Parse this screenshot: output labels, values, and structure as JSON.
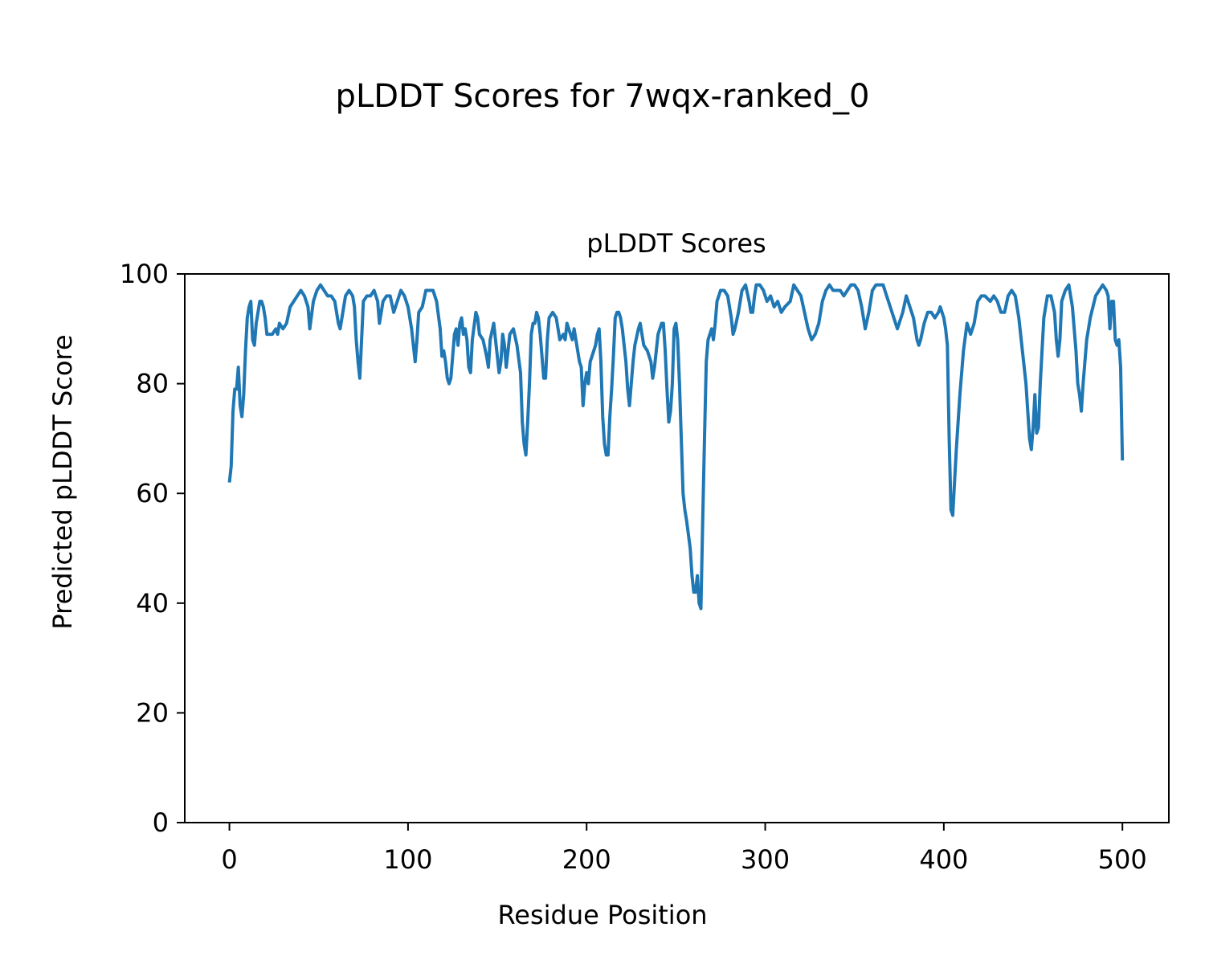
{
  "chart_data": {
    "type": "line",
    "title": "pLDDT Scores for 7wqx-ranked_0",
    "subtitle": "pLDDT Scores",
    "x_label": "Residue Position",
    "y_label": "Predicted pLDDT Score",
    "color": "#1f77b4",
    "x": [
      0,
      1,
      2,
      3,
      4,
      5,
      6,
      7,
      8,
      9,
      10,
      11,
      12,
      13,
      14,
      15,
      16,
      17,
      18,
      19,
      20,
      21,
      22,
      24,
      26,
      27,
      28,
      30,
      32,
      34,
      36,
      38,
      40,
      42,
      44,
      45,
      47,
      49,
      51,
      53,
      55,
      57,
      59,
      61,
      62,
      63,
      65,
      67,
      69,
      70,
      71,
      72,
      73,
      74,
      75,
      77,
      79,
      81,
      83,
      84,
      86,
      88,
      90,
      92,
      94,
      96,
      98,
      100,
      102,
      104,
      105,
      106,
      108,
      110,
      112,
      114,
      116,
      118,
      119,
      120,
      121,
      122,
      123,
      124,
      126,
      127,
      128,
      129,
      130,
      131,
      132,
      133,
      134,
      135,
      136,
      138,
      139,
      140,
      142,
      144,
      145,
      146,
      148,
      149,
      151,
      152,
      153,
      154,
      155,
      157,
      159,
      161,
      163,
      164,
      165,
      166,
      167,
      168,
      169,
      170,
      171,
      172,
      173,
      174,
      175,
      176,
      177,
      178,
      179,
      181,
      183,
      184,
      185,
      187,
      188,
      189,
      191,
      192,
      193,
      195,
      196,
      197,
      198,
      199,
      200,
      201,
      202,
      203,
      205,
      206,
      207,
      208,
      209,
      210,
      211,
      212,
      213,
      214,
      215,
      216,
      217,
      218,
      219,
      220,
      221,
      222,
      223,
      224,
      225,
      226,
      227,
      229,
      230,
      232,
      234,
      236,
      237,
      238,
      240,
      242,
      243,
      244,
      245,
      246,
      247,
      248,
      249,
      250,
      251,
      252,
      253,
      254,
      255,
      256,
      258,
      259,
      260,
      261,
      262,
      263,
      264,
      265,
      266,
      267,
      268,
      269,
      270,
      271,
      272,
      273,
      274,
      275,
      277,
      279,
      281,
      282,
      283,
      285,
      287,
      289,
      291,
      292,
      293,
      294,
      295,
      297,
      299,
      301,
      303,
      305,
      307,
      309,
      311,
      314,
      316,
      318,
      320,
      322,
      324,
      326,
      328,
      330,
      332,
      334,
      336,
      338,
      340,
      342,
      344,
      346,
      348,
      350,
      352,
      354,
      356,
      358,
      360,
      362,
      364,
      366,
      368,
      370,
      372,
      374,
      375,
      377,
      379,
      381,
      383,
      385,
      386,
      387,
      389,
      391,
      393,
      395,
      397,
      398,
      399,
      400,
      401,
      402,
      403,
      404,
      405,
      406,
      407,
      409,
      411,
      413,
      414,
      415,
      417,
      419,
      421,
      423,
      426,
      428,
      430,
      432,
      434,
      436,
      438,
      440,
      442,
      444,
      446,
      447,
      448,
      449,
      450,
      451,
      452,
      453,
      454,
      456,
      458,
      460,
      462,
      463,
      464,
      465,
      466,
      468,
      470,
      472,
      474,
      475,
      476,
      477,
      478,
      480,
      482,
      485,
      487,
      489,
      491,
      492,
      493,
      494,
      495,
      496,
      497,
      498,
      499,
      500
    ],
    "values": [
      62,
      65,
      75,
      79,
      79,
      83,
      76,
      74,
      78,
      86,
      92,
      94,
      95,
      88,
      87,
      91,
      93,
      95,
      95,
      94,
      92,
      89,
      89,
      89,
      90,
      89,
      91,
      90,
      91,
      94,
      95,
      96,
      97,
      96,
      94,
      90,
      95,
      97,
      98,
      97,
      96,
      96,
      95,
      91,
      90,
      92,
      96,
      97,
      96,
      94,
      88,
      84,
      81,
      88,
      95,
      96,
      96,
      97,
      95,
      91,
      95,
      96,
      96,
      93,
      95,
      97,
      96,
      94,
      90,
      84,
      88,
      93,
      94,
      97,
      97,
      97,
      95,
      90,
      85,
      86,
      84,
      81,
      80,
      81,
      89,
      90,
      87,
      91,
      92,
      89,
      90,
      88,
      83,
      82,
      88,
      93,
      92,
      89,
      88,
      85,
      83,
      88,
      91,
      88,
      82,
      84,
      89,
      87,
      83,
      89,
      90,
      87,
      82,
      73,
      69,
      67,
      73,
      80,
      89,
      91,
      91,
      93,
      92,
      89,
      85,
      81,
      81,
      88,
      92,
      93,
      92,
      90,
      88,
      89,
      88,
      91,
      89,
      88,
      90,
      86,
      84,
      83,
      76,
      80,
      82,
      80,
      84,
      85,
      87,
      89,
      90,
      84,
      74,
      69,
      67,
      67,
      74,
      79,
      85,
      92,
      93,
      93,
      92,
      90,
      87,
      84,
      79,
      76,
      80,
      84,
      87,
      90,
      91,
      87,
      86,
      84,
      81,
      83,
      89,
      91,
      91,
      86,
      79,
      73,
      75,
      80,
      90,
      91,
      88,
      80,
      70,
      60,
      57,
      55,
      50,
      45,
      42,
      42,
      45,
      40,
      39,
      55,
      70,
      84,
      88,
      89,
      90,
      88,
      91,
      95,
      96,
      97,
      97,
      96,
      92,
      89,
      90,
      93,
      97,
      98,
      95,
      93,
      93,
      96,
      98,
      98,
      97,
      95,
      96,
      94,
      95,
      93,
      94,
      95,
      98,
      97,
      96,
      93,
      90,
      88,
      89,
      91,
      95,
      97,
      98,
      97,
      97,
      97,
      96,
      97,
      98,
      98,
      97,
      94,
      90,
      93,
      97,
      98,
      98,
      98,
      96,
      94,
      92,
      90,
      91,
      93,
      96,
      94,
      92,
      88,
      87,
      88,
      91,
      93,
      93,
      92,
      93,
      94,
      93,
      92,
      90,
      87,
      70,
      57,
      56,
      62,
      68,
      78,
      86,
      91,
      90,
      89,
      91,
      95,
      96,
      96,
      95,
      96,
      95,
      93,
      93,
      96,
      97,
      96,
      92,
      86,
      80,
      75,
      70,
      68,
      72,
      78,
      71,
      72,
      80,
      92,
      96,
      96,
      93,
      88,
      85,
      88,
      95,
      97,
      98,
      94,
      86,
      80,
      78,
      75,
      80,
      88,
      92,
      96,
      97,
      98,
      97,
      96,
      90,
      95,
      95,
      88,
      87,
      88,
      83,
      66
    ],
    "xlim": [
      -25,
      526
    ],
    "ylim": [
      0,
      100
    ],
    "xticks": [
      0,
      100,
      200,
      300,
      400,
      500
    ],
    "yticks": [
      0,
      20,
      40,
      60,
      80,
      100
    ]
  }
}
